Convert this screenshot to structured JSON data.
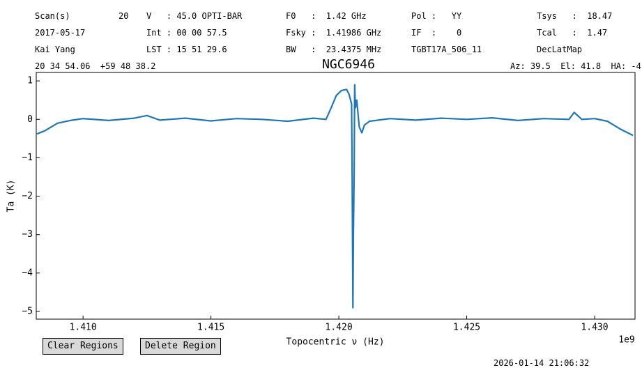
{
  "header": {
    "rows": [
      [
        "Scan(s)",
        "20",
        "V   : 45.0 OPTI-BAR",
        "F0   :  1.42 GHz",
        "Pol :   YY",
        "Tsys   :  18.47"
      ],
      [
        "2017-05-17",
        "Int : 00 00 57.5",
        "Fsky :  1.41986 GHz",
        "IF  :    0",
        "Tcal   :  1.47"
      ],
      [
        "Kai Yang",
        "LST : 15 51 29.6",
        "BW   :  23.4375 MHz",
        "TGBT17A_506_11",
        "DecLatMap"
      ]
    ],
    "coords": "20 34 54.06  +59 48 38.2",
    "pointing": "Az: 39.5  El: 41.8  HA: -4"
  },
  "chart_data": {
    "type": "line",
    "title": "NGC6946",
    "x_label": "Topocentric ν (Hz)",
    "x_offset": "1e9",
    "y_label": "Ta (K)",
    "x": [
      1.4082,
      1.4085,
      1.409,
      1.4095,
      1.41,
      1.411,
      1.412,
      1.4125,
      1.413,
      1.414,
      1.415,
      1.416,
      1.417,
      1.418,
      1.419,
      1.4195,
      1.4197,
      1.4199,
      1.4201,
      1.4203,
      1.4204,
      1.4205,
      1.42052,
      1.42055,
      1.42057,
      1.4206,
      1.42062,
      1.42065,
      1.4207,
      1.4208,
      1.4209,
      1.421,
      1.4212,
      1.422,
      1.423,
      1.424,
      1.425,
      1.426,
      1.427,
      1.428,
      1.429,
      1.4292,
      1.4295,
      1.43,
      1.4305,
      1.431,
      1.4315
    ],
    "series": [
      {
        "name": "Ta",
        "color": "#1f77b4",
        "values": [
          -0.38,
          -0.3,
          -0.1,
          -0.03,
          0.02,
          -0.03,
          0.03,
          0.1,
          -0.02,
          0.03,
          -0.04,
          0.02,
          0.0,
          -0.05,
          0.03,
          0.0,
          0.3,
          0.62,
          0.75,
          0.78,
          0.65,
          0.4,
          -1.5,
          -4.9,
          -3.0,
          -1.3,
          0.9,
          0.3,
          0.5,
          -0.2,
          -0.35,
          -0.15,
          -0.05,
          0.02,
          -0.02,
          0.03,
          0.0,
          0.04,
          -0.03,
          0.02,
          0.0,
          0.18,
          0.0,
          0.02,
          -0.05,
          -0.25,
          -0.42
        ]
      }
    ],
    "xlim": [
      1.40817,
      1.43158
    ],
    "ylim": [
      -5.2,
      1.22
    ],
    "xticks": [
      {
        "value": 1.41,
        "label": "1.410"
      },
      {
        "value": 1.415,
        "label": "1.415"
      },
      {
        "value": 1.42,
        "label": "1.420"
      },
      {
        "value": 1.425,
        "label": "1.425"
      },
      {
        "value": 1.43,
        "label": "1.430"
      }
    ],
    "yticks": [
      {
        "value": -5,
        "label": "−5"
      },
      {
        "value": -4,
        "label": "−4"
      },
      {
        "value": -3,
        "label": "−3"
      },
      {
        "value": -2,
        "label": "−2"
      },
      {
        "value": -1,
        "label": "−1"
      },
      0,
      1
    ]
  },
  "buttons": [
    "Clear Regions",
    "Delete Region"
  ],
  "timestamp": "2026-01-14 21:06:32"
}
